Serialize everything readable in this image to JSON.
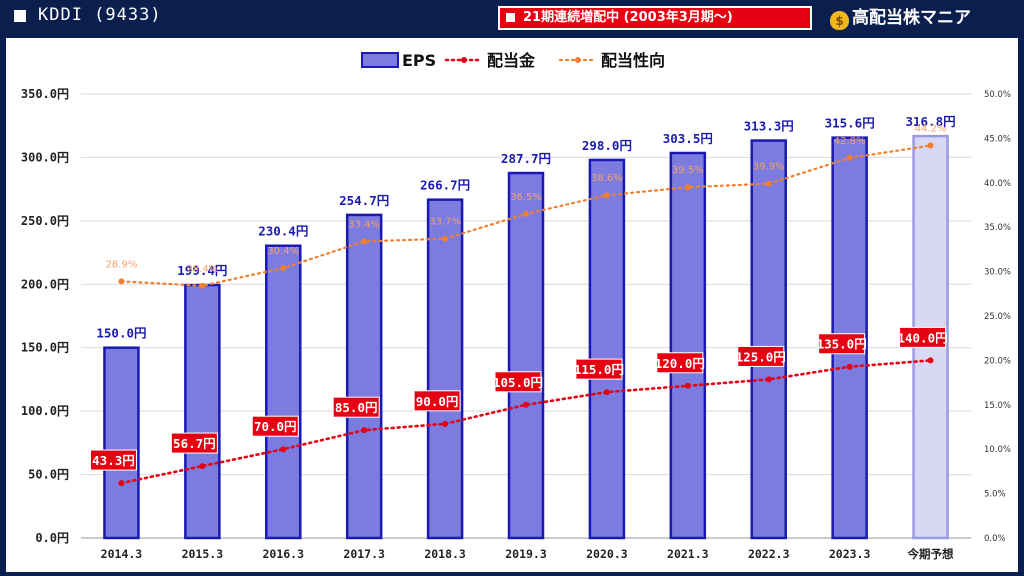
{
  "header": {
    "title": "KDDI (9433)",
    "streak_text": "21期連続増配中 (2003年3月期～)",
    "brand": "高配当株マニア",
    "brand_icon": "money-bag-icon"
  },
  "colors": {
    "background": "#0a1f4e",
    "eps_bar": "#7b7be0",
    "eps_bar_border": "#1a1ab0",
    "forecast_bar": "#d8d8f5",
    "dividend": "#e60012",
    "payout": "#f08030",
    "label_badge": "#e60012"
  },
  "chart_data": {
    "type": "bar",
    "categories": [
      "2014.3",
      "2015.3",
      "2016.3",
      "2017.3",
      "2018.3",
      "2019.3",
      "2020.3",
      "2021.3",
      "2022.3",
      "2023.3",
      "今期予想"
    ],
    "series": [
      {
        "name": "EPS",
        "type": "bar",
        "axis": "left",
        "values": [
          150.0,
          199.4,
          230.4,
          254.7,
          266.7,
          287.7,
          298.0,
          303.5,
          313.3,
          315.6,
          316.8
        ],
        "labels": [
          "150.0円",
          "199.4円",
          "230.4円",
          "254.7円",
          "266.7円",
          "287.7円",
          "298.0円",
          "303.5円",
          "313.3円",
          "315.6円",
          "316.8円"
        ]
      },
      {
        "name": "配当金",
        "type": "line",
        "axis": "left",
        "values": [
          43.3,
          56.7,
          70.0,
          85.0,
          90.0,
          105.0,
          115.0,
          120.0,
          125.0,
          135.0,
          140.0
        ],
        "labels": [
          "43.3円",
          "56.7円",
          "70.0円",
          "85.0円",
          "90.0円",
          "105.0円",
          "115.0円",
          "120.0円",
          "125.0円",
          "135.0円",
          "140.0円"
        ]
      },
      {
        "name": "配当性向",
        "type": "line",
        "axis": "right",
        "values": [
          28.9,
          28.4,
          30.4,
          33.4,
          33.7,
          36.5,
          38.6,
          39.5,
          39.9,
          42.8,
          44.2
        ],
        "labels": [
          "28.9%",
          "28.4%",
          "30.4%",
          "33.4%",
          "33.7%",
          "36.5%",
          "38.6%",
          "39.5%",
          "39.9%",
          "42.8%",
          "44.2%"
        ]
      }
    ],
    "ylim": [
      0,
      350
    ],
    "y2lim": [
      0,
      50
    ],
    "yticks": [
      "0.0円",
      "50.0円",
      "100.0円",
      "150.0円",
      "200.0円",
      "250.0円",
      "300.0円",
      "350.0円"
    ],
    "y2ticks": [
      "0.0%",
      "5.0%",
      "10.0%",
      "15.0%",
      "20.0%",
      "25.0%",
      "30.0%",
      "35.0%",
      "40.0%",
      "45.0%",
      "50.0%"
    ],
    "legend": [
      "EPS",
      "配当金",
      "配当性向"
    ],
    "legend_position": "top-center",
    "grid": true
  }
}
